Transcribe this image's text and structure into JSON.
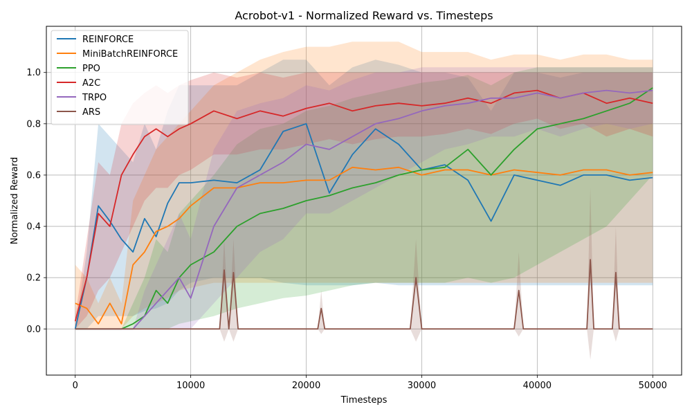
{
  "chart_data": {
    "type": "line",
    "title": "Acrobot-v1 - Normalized Reward vs. Timesteps",
    "xlabel": "Timesteps",
    "ylabel": "Normalized Reward",
    "xlim": [
      -2500,
      52500
    ],
    "ylim": [
      -0.18,
      1.18
    ],
    "xticks": [
      0,
      10000,
      20000,
      30000,
      40000,
      50000
    ],
    "xtick_labels": [
      "0",
      "10000",
      "20000",
      "30000",
      "40000",
      "50000"
    ],
    "yticks": [
      0.0,
      0.2,
      0.4,
      0.6,
      0.8,
      1.0
    ],
    "ytick_labels": [
      "0.0",
      "0.2",
      "0.4",
      "0.6",
      "0.8",
      "1.0"
    ],
    "grid": true,
    "legend_position": "top-left",
    "series": [
      {
        "name": "REINFORCE",
        "color": "#1f77b4",
        "x": [
          0,
          1000,
          2000,
          3000,
          4000,
          5000,
          6000,
          7000,
          8000,
          9000,
          10000,
          12000,
          14000,
          16000,
          18000,
          20000,
          22000,
          24000,
          26000,
          28000,
          30000,
          32000,
          34000,
          36000,
          38000,
          40000,
          42000,
          44000,
          46000,
          48000,
          50000
        ],
        "y": [
          0.0,
          0.2,
          0.48,
          0.42,
          0.35,
          0.3,
          0.43,
          0.36,
          0.49,
          0.57,
          0.57,
          0.58,
          0.57,
          0.62,
          0.77,
          0.8,
          0.53,
          0.68,
          0.78,
          0.72,
          0.62,
          0.64,
          0.58,
          0.42,
          0.6,
          0.58,
          0.56,
          0.6,
          0.6,
          0.58,
          0.59
        ],
        "band_low": [
          0.0,
          0.0,
          0.05,
          0.05,
          0.05,
          0.05,
          0.07,
          0.08,
          0.1,
          0.15,
          0.18,
          0.2,
          0.2,
          0.2,
          0.18,
          0.17,
          0.17,
          0.17,
          0.18,
          0.17,
          0.17,
          0.17,
          0.17,
          0.17,
          0.17,
          0.17,
          0.17,
          0.17,
          0.17,
          0.17,
          0.17
        ],
        "band_high": [
          0.0,
          0.3,
          0.8,
          0.75,
          0.7,
          0.65,
          0.8,
          0.7,
          0.85,
          0.95,
          0.95,
          0.95,
          0.95,
          1.0,
          1.05,
          1.05,
          0.95,
          1.02,
          1.05,
          1.03,
          1.0,
          1.0,
          0.98,
          0.85,
          1.0,
          1.0,
          0.98,
          1.0,
          1.0,
          1.0,
          1.0
        ]
      },
      {
        "name": "MiniBatchREINFORCE",
        "color": "#ff7f0e",
        "x": [
          0,
          1000,
          2000,
          3000,
          4000,
          5000,
          6000,
          7000,
          8000,
          9000,
          10000,
          12000,
          14000,
          16000,
          18000,
          20000,
          22000,
          24000,
          26000,
          28000,
          30000,
          32000,
          34000,
          36000,
          38000,
          40000,
          42000,
          44000,
          46000,
          48000,
          50000
        ],
        "y": [
          0.1,
          0.08,
          0.02,
          0.1,
          0.02,
          0.25,
          0.3,
          0.38,
          0.4,
          0.43,
          0.48,
          0.55,
          0.55,
          0.57,
          0.57,
          0.58,
          0.58,
          0.63,
          0.62,
          0.63,
          0.6,
          0.62,
          0.62,
          0.6,
          0.62,
          0.61,
          0.6,
          0.62,
          0.62,
          0.6,
          0.61
        ],
        "band_low": [
          0.0,
          0.0,
          0.0,
          0.0,
          0.0,
          0.05,
          0.08,
          0.1,
          0.12,
          0.15,
          0.16,
          0.18,
          0.18,
          0.18,
          0.18,
          0.18,
          0.18,
          0.18,
          0.18,
          0.18,
          0.18,
          0.18,
          0.18,
          0.18,
          0.18,
          0.18,
          0.18,
          0.18,
          0.18,
          0.18,
          0.18
        ],
        "band_high": [
          0.25,
          0.2,
          0.1,
          0.2,
          0.1,
          0.5,
          0.6,
          0.7,
          0.75,
          0.8,
          0.85,
          0.95,
          1.0,
          1.05,
          1.08,
          1.1,
          1.1,
          1.12,
          1.12,
          1.12,
          1.08,
          1.08,
          1.08,
          1.05,
          1.07,
          1.07,
          1.05,
          1.07,
          1.07,
          1.05,
          1.05
        ]
      },
      {
        "name": "PPO",
        "color": "#2ca02c",
        "x": [
          0,
          1000,
          2000,
          3000,
          4000,
          5000,
          6000,
          7000,
          8000,
          9000,
          10000,
          12000,
          14000,
          16000,
          18000,
          20000,
          22000,
          24000,
          26000,
          28000,
          30000,
          32000,
          34000,
          36000,
          38000,
          40000,
          42000,
          44000,
          46000,
          48000,
          50000
        ],
        "y": [
          0.0,
          0.0,
          0.0,
          0.0,
          0.0,
          0.02,
          0.05,
          0.15,
          0.1,
          0.2,
          0.25,
          0.3,
          0.4,
          0.45,
          0.47,
          0.5,
          0.52,
          0.55,
          0.57,
          0.6,
          0.62,
          0.63,
          0.7,
          0.6,
          0.7,
          0.78,
          0.8,
          0.82,
          0.85,
          0.88,
          0.94
        ],
        "band_low": [
          0.0,
          0.0,
          0.0,
          0.0,
          0.0,
          0.0,
          0.0,
          0.0,
          0.0,
          0.02,
          0.03,
          0.05,
          0.08,
          0.1,
          0.12,
          0.13,
          0.15,
          0.17,
          0.18,
          0.18,
          0.18,
          0.18,
          0.2,
          0.18,
          0.2,
          0.25,
          0.3,
          0.35,
          0.4,
          0.5,
          0.6
        ],
        "band_high": [
          0.0,
          0.0,
          0.0,
          0.0,
          0.0,
          0.1,
          0.2,
          0.35,
          0.3,
          0.45,
          0.5,
          0.6,
          0.72,
          0.78,
          0.8,
          0.85,
          0.87,
          0.9,
          0.92,
          0.94,
          0.96,
          0.97,
          0.99,
          0.95,
          1.0,
          1.02,
          1.02,
          1.02,
          1.02,
          1.02,
          1.02
        ]
      },
      {
        "name": "A2C",
        "color": "#d62728",
        "x": [
          0,
          1000,
          2000,
          3000,
          4000,
          5000,
          6000,
          7000,
          8000,
          9000,
          10000,
          12000,
          14000,
          16000,
          18000,
          20000,
          22000,
          24000,
          26000,
          28000,
          30000,
          32000,
          34000,
          36000,
          38000,
          40000,
          42000,
          44000,
          46000,
          48000,
          50000
        ],
        "y": [
          0.03,
          0.2,
          0.45,
          0.4,
          0.6,
          0.68,
          0.75,
          0.78,
          0.75,
          0.78,
          0.8,
          0.85,
          0.82,
          0.85,
          0.83,
          0.86,
          0.88,
          0.85,
          0.87,
          0.88,
          0.87,
          0.88,
          0.9,
          0.88,
          0.92,
          0.93,
          0.9,
          0.92,
          0.88,
          0.9,
          0.88
        ],
        "band_low": [
          0.0,
          0.05,
          0.15,
          0.2,
          0.3,
          0.4,
          0.5,
          0.55,
          0.55,
          0.6,
          0.62,
          0.68,
          0.68,
          0.7,
          0.7,
          0.72,
          0.74,
          0.72,
          0.74,
          0.75,
          0.75,
          0.76,
          0.78,
          0.76,
          0.8,
          0.82,
          0.78,
          0.8,
          0.75,
          0.78,
          0.75
        ],
        "band_high": [
          0.05,
          0.35,
          0.65,
          0.6,
          0.8,
          0.88,
          0.92,
          0.95,
          0.92,
          0.95,
          0.97,
          1.0,
          0.98,
          1.0,
          0.98,
          1.0,
          1.0,
          1.0,
          1.0,
          1.0,
          1.0,
          1.0,
          1.0,
          1.0,
          1.0,
          1.0,
          1.0,
          1.0,
          1.0,
          1.0,
          1.0
        ]
      },
      {
        "name": "TRPO",
        "color": "#9467bd",
        "x": [
          0,
          1000,
          2000,
          3000,
          4000,
          5000,
          6000,
          7000,
          8000,
          9000,
          10000,
          12000,
          14000,
          16000,
          18000,
          20000,
          22000,
          24000,
          26000,
          28000,
          30000,
          32000,
          34000,
          36000,
          38000,
          40000,
          42000,
          44000,
          46000,
          48000,
          50000
        ],
        "y": [
          0.0,
          0.0,
          0.0,
          0.0,
          0.0,
          0.0,
          0.05,
          0.1,
          0.15,
          0.2,
          0.12,
          0.4,
          0.55,
          0.6,
          0.65,
          0.72,
          0.7,
          0.75,
          0.8,
          0.82,
          0.85,
          0.87,
          0.88,
          0.9,
          0.9,
          0.92,
          0.9,
          0.92,
          0.93,
          0.92,
          0.93
        ],
        "band_low": [
          0.0,
          0.0,
          0.0,
          0.0,
          0.0,
          0.0,
          0.0,
          0.0,
          0.0,
          0.0,
          0.0,
          0.1,
          0.2,
          0.3,
          0.35,
          0.45,
          0.45,
          0.5,
          0.55,
          0.6,
          0.65,
          0.7,
          0.72,
          0.75,
          0.75,
          0.78,
          0.75,
          0.78,
          0.8,
          0.78,
          0.8
        ],
        "band_high": [
          0.0,
          0.0,
          0.0,
          0.0,
          0.0,
          0.0,
          0.15,
          0.25,
          0.35,
          0.45,
          0.35,
          0.7,
          0.85,
          0.88,
          0.9,
          0.95,
          0.93,
          0.97,
          1.0,
          1.0,
          1.02,
          1.02,
          1.02,
          1.02,
          1.02,
          1.02,
          1.02,
          1.02,
          1.02,
          1.02,
          1.02
        ]
      },
      {
        "name": "ARS",
        "color": "#8c564b",
        "x": [
          0,
          12500,
          12900,
          13300,
          13700,
          14100,
          14500,
          21000,
          21300,
          21600,
          29000,
          29500,
          30000,
          38000,
          38400,
          38800,
          44300,
          44600,
          44900,
          46500,
          46800,
          47100,
          50000
        ],
        "y": [
          0.0,
          0.0,
          0.23,
          0.0,
          0.22,
          0.0,
          0.0,
          0.0,
          0.08,
          0.0,
          0.0,
          0.2,
          0.0,
          0.0,
          0.15,
          0.0,
          0.0,
          0.27,
          0.0,
          0.0,
          0.22,
          0.0,
          0.0
        ],
        "band_low": [
          0.0,
          0.0,
          -0.05,
          0.0,
          -0.05,
          0.0,
          0.0,
          0.0,
          -0.02,
          0.0,
          0.0,
          -0.05,
          0.0,
          0.0,
          -0.03,
          0.0,
          0.0,
          -0.12,
          0.0,
          0.0,
          -0.05,
          0.0,
          0.0
        ],
        "band_high": [
          0.0,
          0.0,
          0.35,
          0.0,
          0.35,
          0.0,
          0.0,
          0.0,
          0.15,
          0.0,
          0.0,
          0.35,
          0.0,
          0.0,
          0.3,
          0.0,
          0.0,
          0.55,
          0.0,
          0.0,
          0.4,
          0.0,
          0.0
        ]
      }
    ]
  }
}
